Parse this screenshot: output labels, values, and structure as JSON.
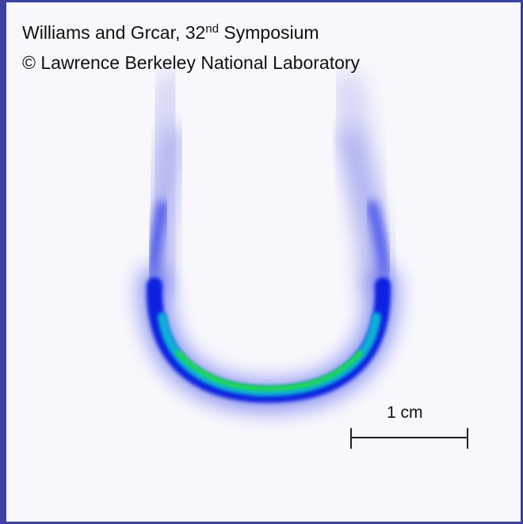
{
  "caption": {
    "line1": {
      "before": "Williams and Grcar, 32",
      "superscript": "nd",
      "after": " Symposium"
    },
    "line2": "© Lawrence Berkeley National Laboratory"
  },
  "scale_bar": {
    "label": "1 cm"
  }
}
